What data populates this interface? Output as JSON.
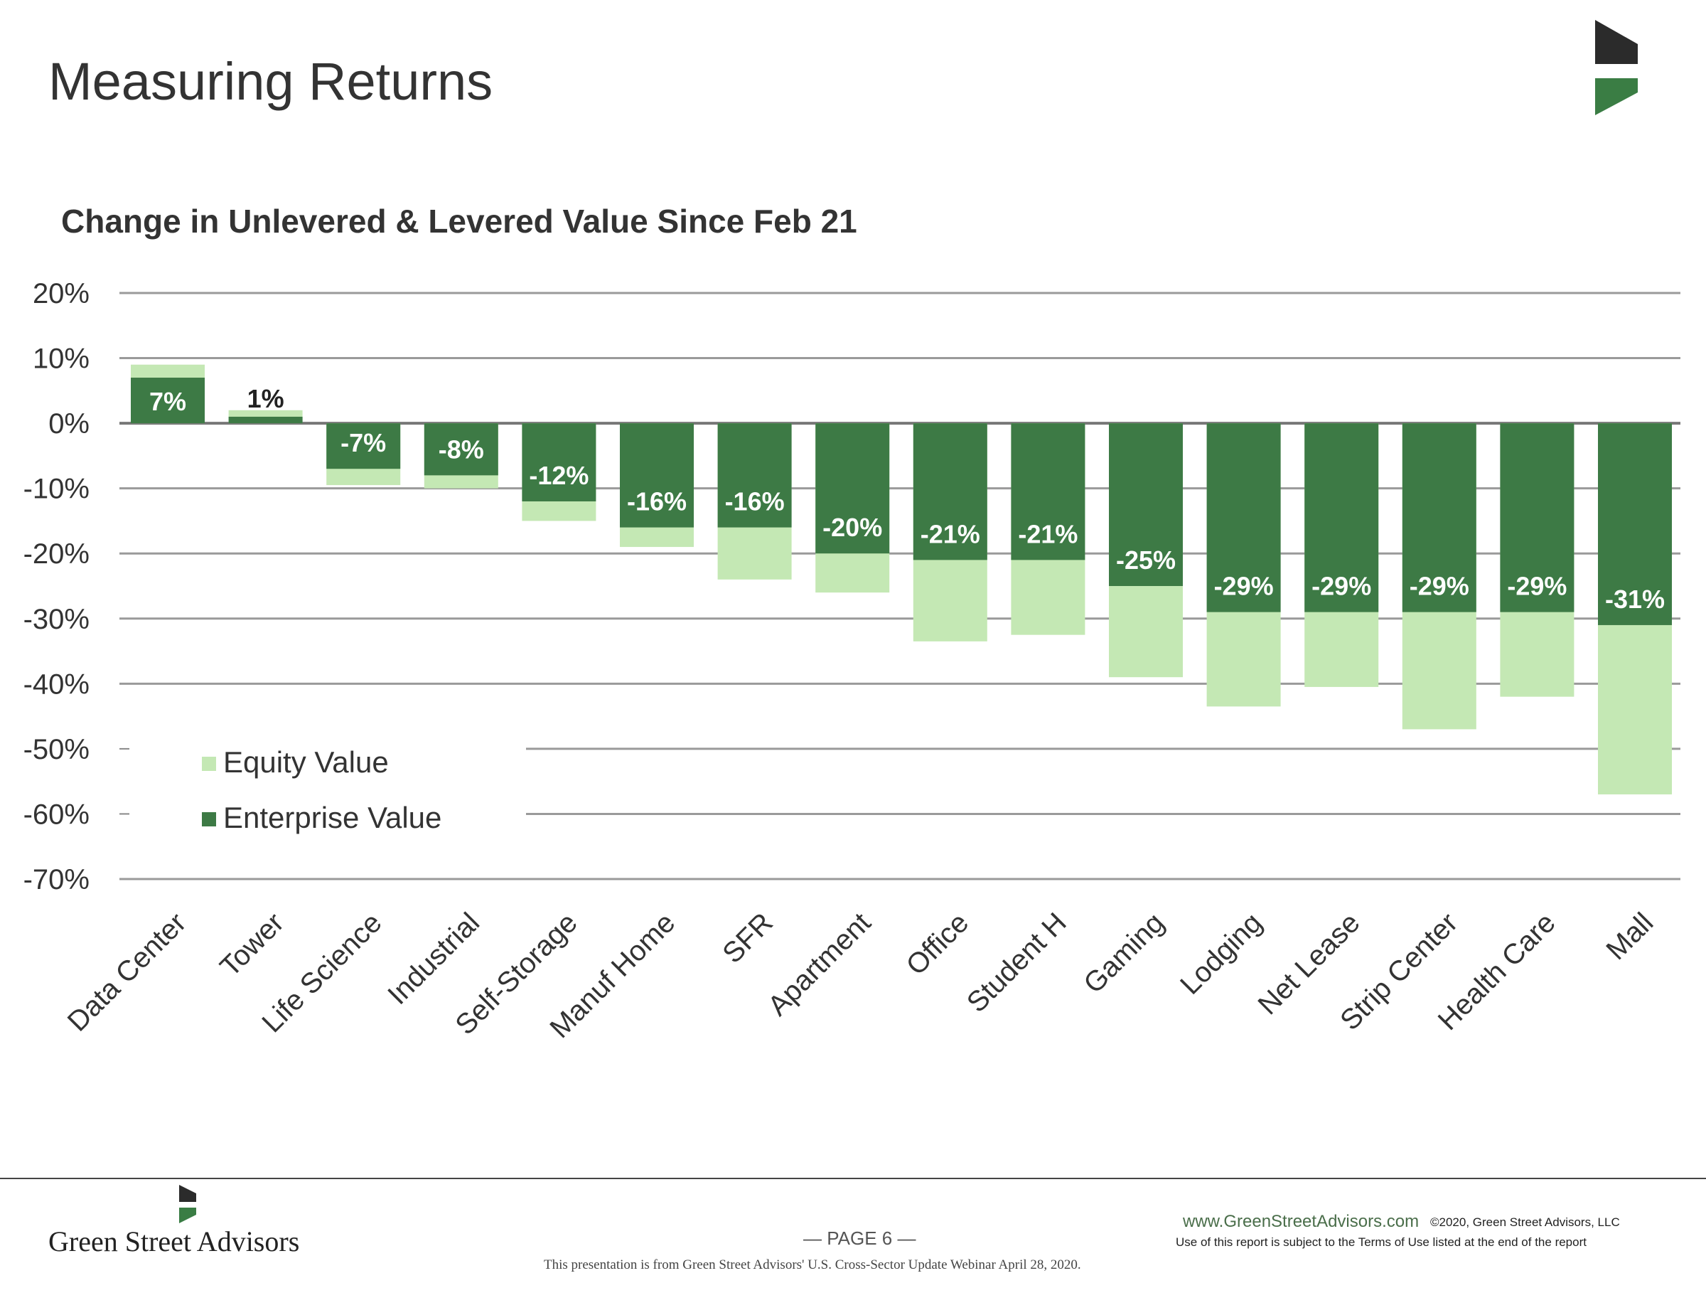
{
  "page": {
    "title": "Measuring Returns",
    "page_number": "— PAGE 6 —",
    "company": "Green Street Advisors",
    "website": "www.GreenStreetAdvisors.com",
    "copyright": "©2020, Green Street Advisors, LLC",
    "terms": "Use of this report is subject to the Terms of Use listed at the end of the report",
    "source_note": "This presentation is from Green Street Advisors' U.S. Cross-Sector Update Webinar April 28, 2020."
  },
  "colors": {
    "equity": "#c4e8b4",
    "enterprise": "#3d7a45",
    "logo_dark": "#2b2b2b",
    "logo_green": "#3a7d44"
  },
  "chart_data": {
    "type": "bar",
    "title": "Change in Unlevered & Levered Value Since Feb 21",
    "xlabel": "",
    "ylabel": "",
    "ylim": [
      -70,
      20
    ],
    "yticks": [
      20,
      10,
      0,
      -10,
      -20,
      -30,
      -40,
      -50,
      -60,
      -70
    ],
    "ytick_labels": [
      "20%",
      "10%",
      "0%",
      "-10%",
      "-20%",
      "-30%",
      "-40%",
      "-50%",
      "-60%",
      "-70%"
    ],
    "grid": true,
    "legend_position": "bottom-left",
    "categories": [
      "Data Center",
      "Tower",
      "Life Science",
      "Industrial",
      "Self-Storage",
      "Manuf Home",
      "SFR",
      "Apartment",
      "Office",
      "Student H",
      "Gaming",
      "Lodging",
      "Net Lease",
      "Strip Center",
      "Health Care",
      "Mall"
    ],
    "series": [
      {
        "name": "Equity Value",
        "values": [
          9,
          2,
          -9.5,
          -10,
          -15,
          -19,
          -24,
          -26,
          -33.5,
          -32.5,
          -39,
          -43.5,
          -40.5,
          -47,
          -42,
          -57
        ]
      },
      {
        "name": "Enterprise Value",
        "values": [
          7,
          1,
          -7,
          -8,
          -12,
          -16,
          -16,
          -20,
          -21,
          -21,
          -25,
          -29,
          -29,
          -29,
          -29,
          -31
        ],
        "labels": [
          "7%",
          "1%",
          "-7%",
          "-8%",
          "-12%",
          "-16%",
          "-16%",
          "-20%",
          "-21%",
          "-21%",
          "-25%",
          "-29%",
          "-29%",
          "-29%",
          "-29%",
          "-31%"
        ]
      }
    ]
  }
}
